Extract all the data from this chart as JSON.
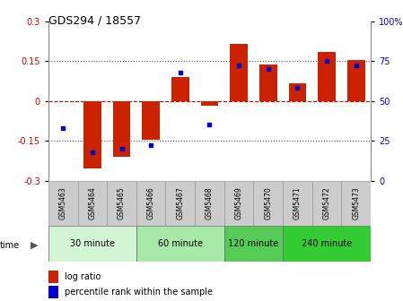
{
  "title": "GDS294 / 18557",
  "samples": [
    "GSM5463",
    "GSM5464",
    "GSM5465",
    "GSM5466",
    "GSM5467",
    "GSM5468",
    "GSM5469",
    "GSM5470",
    "GSM5471",
    "GSM5472",
    "GSM5473"
  ],
  "log_ratio": [
    0.0,
    -0.255,
    -0.21,
    -0.145,
    0.09,
    -0.02,
    0.215,
    0.135,
    0.065,
    0.185,
    0.155
  ],
  "percentile": [
    33,
    18,
    20,
    22,
    68,
    35,
    72,
    70,
    58,
    75,
    72
  ],
  "groups": [
    {
      "label": "30 minute",
      "start": 0,
      "end": 3,
      "color": "#d4f5d4"
    },
    {
      "label": "60 minute",
      "start": 3,
      "end": 6,
      "color": "#a8e8a8"
    },
    {
      "label": "120 minute",
      "start": 6,
      "end": 8,
      "color": "#55cc55"
    },
    {
      "label": "240 minute",
      "start": 8,
      "end": 11,
      "color": "#33cc33"
    }
  ],
  "bar_color": "#cc2200",
  "dot_color": "#0000cc",
  "ylim": [
    -0.3,
    0.3
  ],
  "yticks_left": [
    -0.3,
    -0.15,
    0.0,
    0.15,
    0.3
  ],
  "ytick_labels_left": [
    "-0.3",
    "-0.15",
    "0",
    "0.15",
    "0.3"
  ],
  "ytick_labels_right": [
    "0",
    "25",
    "50",
    "75",
    "100%"
  ],
  "ylabel_left_color": "#cc0000",
  "ylabel_right_color": "#0000cc",
  "bg_color": "#ffffff",
  "sample_box_color": "#cccccc",
  "bar_width": 0.6
}
